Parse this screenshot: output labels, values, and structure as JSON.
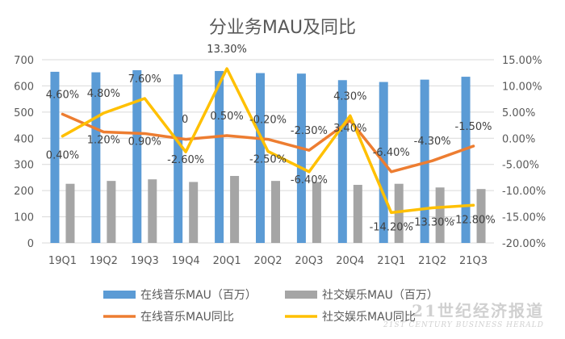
{
  "chart_data": {
    "type": "bar",
    "title": "分业务MAU及同比",
    "categories": [
      "19Q1",
      "19Q2",
      "19Q3",
      "19Q4",
      "20Q1",
      "20Q2",
      "20Q3",
      "20Q4",
      "21Q1",
      "21Q2",
      "21Q3"
    ],
    "left_axis": {
      "min": 0,
      "max": 700,
      "ticks": [
        "0",
        "100",
        "200",
        "300",
        "400",
        "500",
        "600",
        "700"
      ]
    },
    "right_axis": {
      "min": -20,
      "max": 15,
      "ticks": [
        "-20.00%",
        "-15.00%",
        "-10.00%",
        "-5.00%",
        "0.00%",
        "5.00%",
        "10.00%",
        "15.00%"
      ]
    },
    "grid": true,
    "legend_position": "bottom",
    "bar_series": [
      {
        "name": "在线音乐MAU（百万）",
        "color": "#5b9bd5",
        "values": [
          654,
          652,
          660,
          644,
          657,
          649,
          647,
          622,
          615,
          624,
          635
        ]
      },
      {
        "name": "社交娱乐MAU（百万）",
        "color": "#a5a5a5",
        "values": [
          226,
          237,
          243,
          233,
          256,
          237,
          233,
          222,
          226,
          212,
          206
        ]
      }
    ],
    "line_series": [
      {
        "name": "在线音乐MAU同比",
        "color": "#ed7d31",
        "values": [
          4.6,
          1.2,
          0.9,
          -0.2,
          0.5,
          -0.2,
          -2.3,
          3.4,
          -6.4,
          -4.3,
          -1.5
        ],
        "labels": [
          "4.60%",
          "1.20%",
          "0.90%",
          "",
          "0.50%",
          "-0.20%",
          "-2.30%",
          "3.40%",
          "-6.40%",
          "-4.30%",
          "-1.50%"
        ]
      },
      {
        "name": "社交娱乐MAU同比",
        "color": "#ffc000",
        "values": [
          0.4,
          4.8,
          7.6,
          -2.6,
          13.3,
          -2.5,
          -6.4,
          4.3,
          -14.2,
          -13.3,
          -12.8
        ],
        "labels": [
          "0.40%",
          "4.80%",
          "7.60%",
          "-2.60%",
          "13.30%",
          "-2.50%",
          "-6.40%",
          "4.30%",
          "-14.20%",
          "-13.30%",
          "-12.80%"
        ]
      }
    ],
    "annotations": [
      "0"
    ]
  },
  "watermark": {
    "main": "21世纪经济报道",
    "sub": "21ST CENTURY BUSINESS HERALD"
  }
}
